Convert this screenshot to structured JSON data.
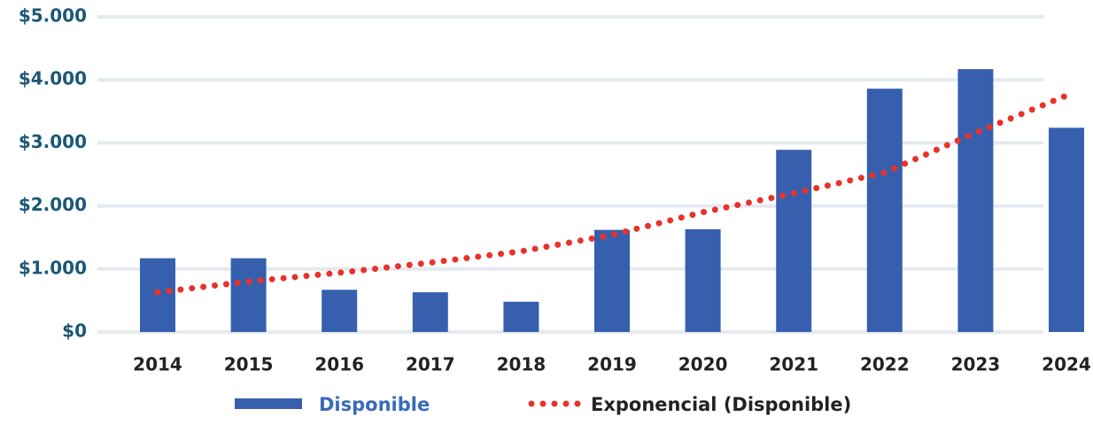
{
  "chart_data": {
    "type": "bar",
    "categories": [
      "2014",
      "2015",
      "2016",
      "2017",
      "2018",
      "2019",
      "2020",
      "2021",
      "2022",
      "2023",
      "2024"
    ],
    "series": [
      {
        "name": "Disponible",
        "type": "bar",
        "color": "#3660ae",
        "values": [
          1170,
          1170,
          670,
          630,
          480,
          1620,
          1630,
          2890,
          3860,
          4170,
          3240
        ]
      },
      {
        "name": "Exponencial (Disponible)",
        "type": "line",
        "color": "#e8322a",
        "values": [
          630,
          800,
          940,
          1100,
          1280,
          1540,
          1900,
          2200,
          2530,
          3160,
          3750
        ]
      }
    ],
    "ylim": [
      0,
      5000
    ],
    "yticks": [
      {
        "value": 0,
        "label": "$0"
      },
      {
        "value": 1000,
        "label": "$1.000"
      },
      {
        "value": 2000,
        "label": "$2.000"
      },
      {
        "value": 3000,
        "label": "$3.000"
      },
      {
        "value": 4000,
        "label": "$4.000"
      },
      {
        "value": 5000,
        "label": "$5.000"
      }
    ],
    "grid": true,
    "legend": "bottom"
  }
}
